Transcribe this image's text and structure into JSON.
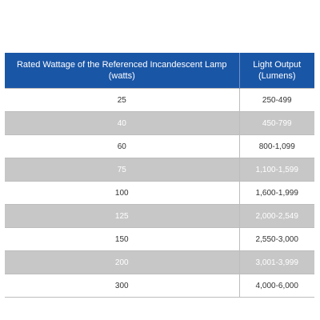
{
  "table": {
    "headers": [
      "Rated Wattage of the Referenced Incandescent Lamp (watts)",
      "Light Output (Lumens)"
    ],
    "rows": [
      [
        "25",
        "250-499"
      ],
      [
        "40",
        "450-799"
      ],
      [
        "60",
        "800-1,099"
      ],
      [
        "75",
        "1,100-1,599"
      ],
      [
        "100",
        "1,600-1,999"
      ],
      [
        "125",
        "2,000-2,549"
      ],
      [
        "150",
        "2,550-3,000"
      ],
      [
        "200",
        "3,001-3,999"
      ],
      [
        "300",
        "4,000-6,000"
      ]
    ]
  },
  "colors": {
    "header_bg": "#1a56a6",
    "header_text": "#ffffff",
    "row_alt_bg": "#c7c7c7",
    "row_bg": "#ffffff"
  }
}
